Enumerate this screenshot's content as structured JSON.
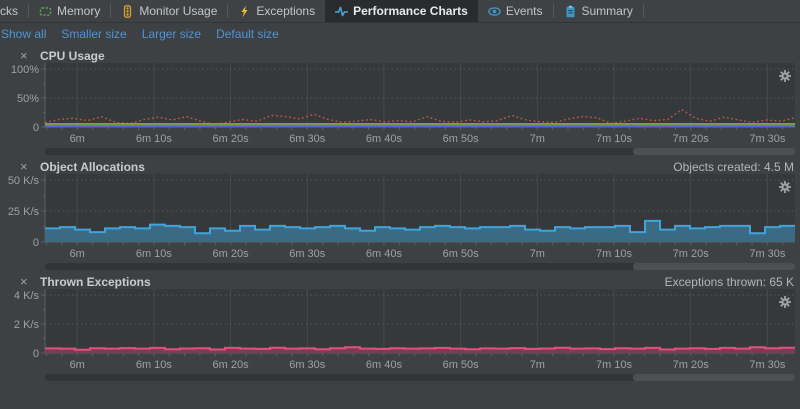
{
  "tabs": {
    "items": [
      {
        "label": "cks",
        "active": false
      },
      {
        "label": "Memory",
        "active": false
      },
      {
        "label": "Monitor Usage",
        "active": false
      },
      {
        "label": "Exceptions",
        "active": false
      },
      {
        "label": "Performance Charts",
        "active": true
      },
      {
        "label": "Events",
        "active": false
      },
      {
        "label": "Summary",
        "active": false
      }
    ]
  },
  "toolbar": {
    "links": [
      "Show all",
      "Smaller size",
      "Larger size",
      "Default size"
    ]
  },
  "colors": {
    "page_bg": "#3d4143",
    "plot_bg": "#36393b",
    "vgrid": "#464a4b",
    "hgrid": "#54585a",
    "axis": "#5c6062",
    "tick_label": "#9da2a5",
    "link_blue": "#5094d5",
    "scroll_track": "#323537",
    "scroll_thumb": "#4c5052"
  },
  "time_axis": {
    "start_s": 355.8,
    "end_s": 453.6,
    "minor_tick_step_s": 2,
    "ticks": [
      {
        "s": 360,
        "label": "6m"
      },
      {
        "s": 370,
        "label": "6m 10s"
      },
      {
        "s": 380,
        "label": "6m 20s"
      },
      {
        "s": 390,
        "label": "6m 30s"
      },
      {
        "s": 400,
        "label": "6m 40s"
      },
      {
        "s": 410,
        "label": "6m 50s"
      },
      {
        "s": 420,
        "label": "7m"
      },
      {
        "s": 430,
        "label": "7m 10s"
      },
      {
        "s": 440,
        "label": "7m 20s"
      },
      {
        "s": 450,
        "label": "7m 30s"
      }
    ]
  },
  "chart_data": [
    {
      "name": "cpu-usage",
      "type": "line",
      "title": "CPU Usage",
      "header_right": "",
      "y_max": 100,
      "y_ticks": [
        {
          "v": 100,
          "label": "100%"
        },
        {
          "v": 50,
          "label": "50%"
        },
        {
          "v": 0,
          "label": "0"
        }
      ],
      "series": [
        {
          "name": "cpu-sampled",
          "color": "#c75450",
          "style": "dotted",
          "values": [
            8,
            13,
            15,
            11,
            18,
            8,
            6,
            13,
            17,
            12,
            18,
            10,
            4,
            9,
            13,
            10,
            20,
            18,
            14,
            22,
            13,
            8,
            10,
            13,
            9,
            11,
            9,
            18,
            10,
            8,
            12,
            9,
            11,
            20,
            12,
            9,
            8,
            14,
            18,
            16,
            6,
            10,
            15,
            11,
            13,
            30,
            15,
            10,
            17,
            12,
            8,
            12,
            10,
            16
          ]
        },
        {
          "name": "cpu-kernel",
          "color": "#a8a138",
          "style": "solid",
          "constant": 5
        },
        {
          "name": "cpu-process",
          "color": "#55a04e",
          "style": "solid",
          "constant": 3
        },
        {
          "name": "cpu-gc",
          "color": "#6060d0",
          "style": "solid",
          "constant": 0.9
        }
      ]
    },
    {
      "name": "object-allocations",
      "type": "step-area",
      "title": "Object Allocations",
      "header_right": "Objects created: 4.5 M",
      "y_max": 50,
      "y_ticks": [
        {
          "v": 50,
          "label": "50 K/s"
        },
        {
          "v": 25,
          "label": "25 K/s"
        },
        {
          "v": 0,
          "label": "0"
        }
      ],
      "series": [
        {
          "name": "allocations",
          "color": "#40a3da",
          "fill": "#3a6a84",
          "values": [
            11,
            12,
            10,
            8,
            11,
            12,
            11,
            14,
            13,
            12,
            7,
            11,
            9,
            13,
            10,
            13,
            12,
            11,
            12,
            13,
            11,
            9,
            12,
            11,
            10,
            12,
            13,
            12,
            11,
            12,
            12,
            13,
            10,
            9,
            12,
            11,
            12,
            12,
            13,
            8,
            17,
            10,
            13,
            11,
            12,
            13,
            13,
            7,
            12,
            13
          ]
        }
      ]
    },
    {
      "name": "thrown-exceptions",
      "type": "step-area",
      "title": "Thrown Exceptions",
      "header_right": "Exceptions thrown: 65 K",
      "y_max": 4,
      "y_ticks": [
        {
          "v": 4,
          "label": "4 K/s"
        },
        {
          "v": 2,
          "label": "2 K/s"
        },
        {
          "v": 0,
          "label": "0"
        }
      ],
      "series": [
        {
          "name": "exceptions",
          "color": "#e0517e",
          "fill": "#7c3b52",
          "values": [
            0.32,
            0.3,
            0.22,
            0.33,
            0.3,
            0.34,
            0.3,
            0.35,
            0.26,
            0.31,
            0.33,
            0.24,
            0.35,
            0.3,
            0.28,
            0.36,
            0.3,
            0.32,
            0.26,
            0.33,
            0.4,
            0.3,
            0.28,
            0.33,
            0.3,
            0.32,
            0.35,
            0.3,
            0.26,
            0.32,
            0.3,
            0.34,
            0.28,
            0.31,
            0.36,
            0.3,
            0.32,
            0.27,
            0.33,
            0.3,
            0.35,
            0.24,
            0.3,
            0.33,
            0.28,
            0.35,
            0.3,
            0.4,
            0.33,
            0.36
          ]
        }
      ]
    }
  ]
}
